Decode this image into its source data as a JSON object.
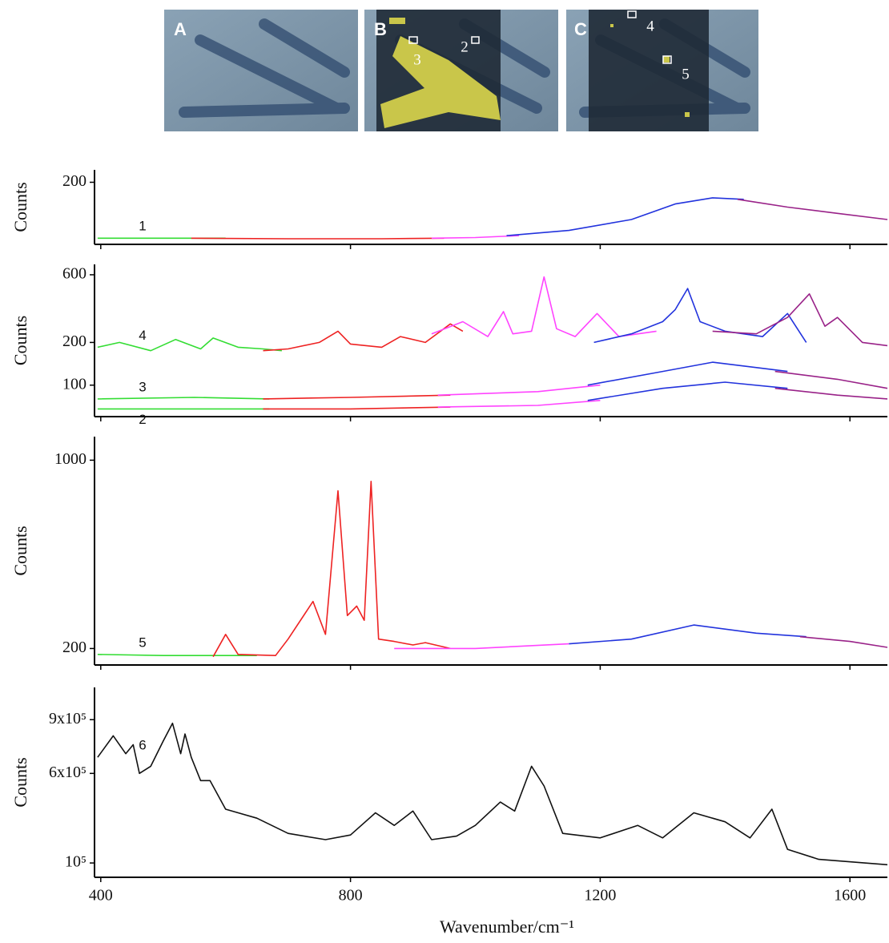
{
  "images": [
    {
      "label": "A",
      "markers": []
    },
    {
      "label": "B",
      "markers": [
        "3",
        "2"
      ]
    },
    {
      "label": "C",
      "markers": [
        "4",
        "5"
      ]
    }
  ],
  "chart_data": [
    {
      "type": "line",
      "y_label": "Counts",
      "xlim": [
        390,
        1660
      ],
      "ylim": [
        0,
        240
      ],
      "yticks": [
        200
      ],
      "series": [
        {
          "name": "1",
          "segments": [
            {
              "color": "#33dd33",
              "x": [
                395,
                500,
                600
              ],
              "values": [
                20,
                20,
                20
              ]
            },
            {
              "color": "#ee2222",
              "x": [
                545,
                700,
                850,
                950
              ],
              "values": [
                20,
                18,
                18,
                20
              ]
            },
            {
              "color": "#ff44ff",
              "x": [
                930,
                1000,
                1070
              ],
              "values": [
                20,
                22,
                28
              ]
            },
            {
              "color": "#2233dd",
              "x": [
                1050,
                1150,
                1250,
                1320,
                1380,
                1430
              ],
              "values": [
                28,
                45,
                80,
                130,
                150,
                145
              ]
            },
            {
              "color": "#992288",
              "x": [
                1420,
                1500,
                1580,
                1660
              ],
              "values": [
                145,
                120,
                100,
                80
              ]
            }
          ]
        }
      ]
    },
    {
      "type": "line",
      "y_label": "Counts",
      "xlim": [
        390,
        1660
      ],
      "ylim": [
        60,
        710
      ],
      "log_y": true,
      "yticks": [
        100,
        200,
        600
      ],
      "series": [
        {
          "name": "2",
          "segments": [
            {
              "color": "#33dd33",
              "x": [
                395,
                550,
                670
              ],
              "values": [
                68,
                68,
                68
              ]
            },
            {
              "color": "#ee2222",
              "x": [
                660,
                800,
                960
              ],
              "values": [
                68,
                68,
                70
              ]
            },
            {
              "color": "#ff44ff",
              "x": [
                940,
                1100,
                1200
              ],
              "values": [
                70,
                72,
                78
              ]
            },
            {
              "color": "#2233dd",
              "x": [
                1180,
                1300,
                1400,
                1500
              ],
              "values": [
                78,
                95,
                105,
                95
              ]
            },
            {
              "color": "#992288",
              "x": [
                1480,
                1580,
                1660
              ],
              "values": [
                95,
                85,
                80
              ]
            }
          ]
        },
        {
          "name": "3",
          "segments": [
            {
              "color": "#33dd33",
              "x": [
                395,
                550,
                670
              ],
              "values": [
                80,
                82,
                80
              ]
            },
            {
              "color": "#ee2222",
              "x": [
                660,
                800,
                960
              ],
              "values": [
                80,
                82,
                85
              ]
            },
            {
              "color": "#ff44ff",
              "x": [
                940,
                1100,
                1200
              ],
              "values": [
                85,
                90,
                100
              ]
            },
            {
              "color": "#2233dd",
              "x": [
                1180,
                1300,
                1380,
                1500
              ],
              "values": [
                100,
                125,
                145,
                125
              ]
            },
            {
              "color": "#992288",
              "x": [
                1480,
                1580,
                1660
              ],
              "values": [
                125,
                110,
                95
              ]
            }
          ]
        },
        {
          "name": "4",
          "segments": [
            {
              "color": "#33dd33",
              "x": [
                395,
                430,
                480,
                520,
                560,
                580,
                620,
                660,
                690
              ],
              "values": [
                185,
                200,
                175,
                210,
                180,
                215,
                185,
                180,
                175
              ]
            },
            {
              "color": "#ee2222",
              "x": [
                660,
                700,
                750,
                780,
                800,
                850,
                880,
                920,
                960,
                980
              ],
              "values": [
                175,
                180,
                200,
                240,
                195,
                185,
                220,
                200,
                270,
                240
              ]
            },
            {
              "color": "#ff44ff",
              "x": [
                930,
                980,
                1020,
                1045,
                1060,
                1090,
                1110,
                1130,
                1160,
                1195,
                1230,
                1290
              ],
              "values": [
                230,
                280,
                220,
                330,
                230,
                240,
                580,
                250,
                220,
                320,
                220,
                240
              ]
            },
            {
              "color": "#2233dd",
              "x": [
                1190,
                1250,
                1300,
                1320,
                1340,
                1360,
                1400,
                1460,
                1500,
                1530
              ],
              "values": [
                200,
                230,
                280,
                340,
                480,
                280,
                240,
                220,
                320,
                200
              ]
            },
            {
              "color": "#992288",
              "x": [
                1380,
                1450,
                1500,
                1535,
                1560,
                1580,
                1620,
                1660
              ],
              "values": [
                240,
                230,
                300,
                440,
                260,
                300,
                200,
                190
              ]
            }
          ]
        }
      ]
    },
    {
      "type": "line",
      "y_label": "Counts",
      "xlim": [
        390,
        1660
      ],
      "ylim": [
        130,
        1100
      ],
      "yticks": [
        200,
        1000
      ],
      "series": [
        {
          "name": "5",
          "segments": [
            {
              "color": "#33dd33",
              "x": [
                395,
                500,
                650
              ],
              "values": [
                175,
                170,
                170
              ]
            },
            {
              "color": "#ee2222",
              "x": [
                580,
                600,
                620,
                680,
                700,
                740,
                760,
                780,
                795,
                810,
                822,
                833,
                845,
                870,
                900,
                920,
                960
              ],
              "values": [
                165,
                260,
                175,
                170,
                240,
                400,
                260,
                870,
                340,
                380,
                320,
                910,
                240,
                230,
                215,
                225,
                200
              ]
            },
            {
              "color": "#ff44ff",
              "x": [
                870,
                1000,
                1150
              ],
              "values": [
                200,
                200,
                220
              ]
            },
            {
              "color": "#2233dd",
              "x": [
                1150,
                1250,
                1350,
                1450,
                1530
              ],
              "values": [
                220,
                240,
                300,
                265,
                250
              ]
            },
            {
              "color": "#992288",
              "x": [
                1520,
                1600,
                1660
              ],
              "values": [
                250,
                230,
                205
              ]
            }
          ]
        }
      ]
    },
    {
      "type": "line",
      "y_label": "Counts",
      "x_label": "Wavenumber/cm⁻¹",
      "xlim": [
        390,
        1660
      ],
      "ylim": [
        20000,
        1080000
      ],
      "yticks": [
        {
          "value": 100000,
          "label": "10⁵"
        },
        {
          "value": 600000,
          "label": "6x10⁵"
        },
        {
          "value": 900000,
          "label": "9x10⁵"
        }
      ],
      "xticks": [
        400,
        800,
        1200,
        1600
      ],
      "series": [
        {
          "name": "6",
          "segments": [
            {
              "color": "#111111",
              "x": [
                395,
                420,
                440,
                452,
                462,
                480,
                500,
                515,
                528,
                535,
                545,
                560,
                575,
                600,
                650,
                700,
                760,
                800,
                840,
                870,
                900,
                930,
                970,
                1000,
                1040,
                1063,
                1090,
                1110,
                1140,
                1200,
                1260,
                1300,
                1350,
                1400,
                1440,
                1475,
                1500,
                1550,
                1660
              ],
              "values": [
                690000,
                810000,
                710000,
                760000,
                600000,
                640000,
                780000,
                880000,
                710000,
                820000,
                690000,
                560000,
                560000,
                400000,
                350000,
                265000,
                230000,
                256000,
                380000,
                310000,
                390000,
                230000,
                250000,
                310000,
                440000,
                390000,
                640000,
                530000,
                265000,
                240000,
                310000,
                240000,
                380000,
                330000,
                240000,
                400000,
                176000,
                120000,
                90000
              ]
            }
          ]
        }
      ]
    }
  ]
}
